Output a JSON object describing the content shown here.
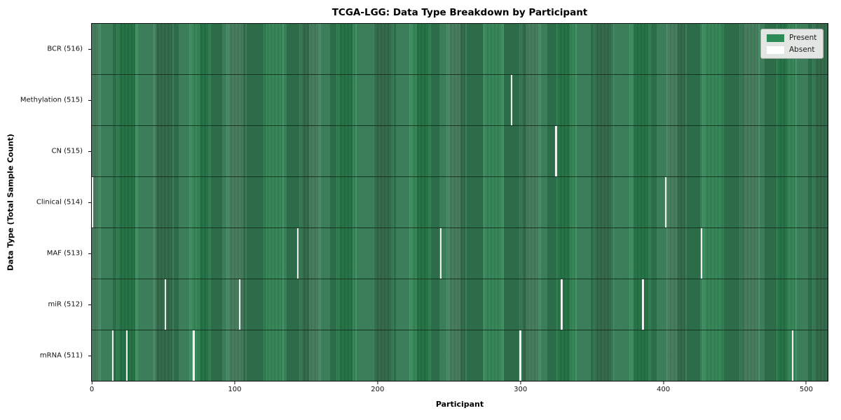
{
  "chart_data": {
    "type": "heatmap",
    "title": "TCGA-LGG: Data Type Breakdown by Participant",
    "xlabel": "Participant",
    "ylabel": "Data Type (Total Sample Count)",
    "x_ticks": [
      0,
      100,
      200,
      300,
      400,
      500
    ],
    "xlim": [
      0,
      516
    ],
    "n_participants": 516,
    "grid": false,
    "rows": [
      {
        "label": "BCR (516)",
        "data_type": "BCR",
        "total_samples": 516,
        "absent_participants": []
      },
      {
        "label": "Methylation (515)",
        "data_type": "Methylation",
        "total_samples": 515,
        "absent_participants": [
          294
        ]
      },
      {
        "label": "CN (515)",
        "data_type": "CN",
        "total_samples": 515,
        "absent_participants": [
          325
        ]
      },
      {
        "label": "Clinical (514)",
        "data_type": "Clinical",
        "total_samples": 514,
        "absent_participants": [
          0,
          402
        ]
      },
      {
        "label": "MAF (513)",
        "data_type": "MAF",
        "total_samples": 513,
        "absent_participants": [
          144,
          244,
          427
        ]
      },
      {
        "label": "miR (512)",
        "data_type": "miR",
        "total_samples": 512,
        "absent_participants": [
          51,
          103,
          329,
          386
        ]
      },
      {
        "label": "mRNA (511)",
        "data_type": "mRNA",
        "total_samples": 511,
        "absent_participants": [
          14,
          24,
          71,
          300,
          491
        ]
      }
    ],
    "legend": {
      "position": "upper right",
      "entries": [
        {
          "label": "Present",
          "color": "#2e8b57"
        },
        {
          "label": "Absent",
          "color": "#ffffff"
        }
      ]
    },
    "colors": {
      "present_stripe_light": "#3f9162",
      "present_stripe_dark": "#1e5738",
      "absent": "#f4f4f4",
      "row_separator": "rgba(0,0,0,0.55)"
    }
  }
}
